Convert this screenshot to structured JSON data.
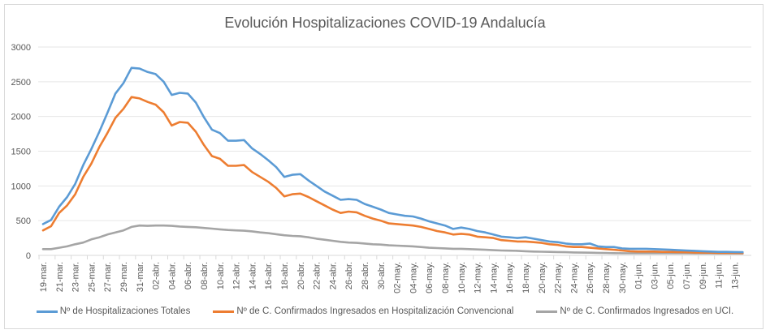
{
  "chart_data": {
    "type": "line",
    "title": "Evolución Hospitalizaciones COVID-19 Andalucía",
    "xlabel": "",
    "ylabel": "",
    "ylim": [
      0,
      3000
    ],
    "yticks": [
      "0",
      "500",
      "1000",
      "1500",
      "2000",
      "2500",
      "3000"
    ],
    "ytick_values": [
      0,
      500,
      1000,
      1500,
      2000,
      2500,
      3000
    ],
    "grid": true,
    "legend_position": "bottom",
    "x": [
      "19-mar.",
      "20-mar.",
      "21-mar.",
      "22-mar.",
      "23-mar.",
      "24-mar.",
      "25-mar.",
      "26-mar.",
      "27-mar.",
      "28-mar.",
      "29-mar.",
      "30-mar.",
      "31-mar.",
      "01-abr.",
      "02-abr.",
      "03-abr.",
      "04-abr.",
      "05-abr.",
      "06-abr.",
      "07-abr.",
      "08-abr.",
      "09-abr.",
      "10-abr.",
      "11-abr.",
      "12-abr.",
      "13-abr.",
      "14-abr.",
      "15-abr.",
      "16-abr.",
      "17-abr.",
      "18-abr.",
      "19-abr.",
      "20-abr.",
      "21-abr.",
      "22-abr.",
      "23-abr.",
      "24-abr.",
      "25-abr.",
      "26-abr.",
      "27-abr.",
      "28-abr.",
      "29-abr.",
      "30-abr.",
      "01-may.",
      "02-may.",
      "03-may.",
      "04-may.",
      "05-may.",
      "06-may.",
      "07-may.",
      "08-may.",
      "09-may.",
      "10-may.",
      "11-may.",
      "12-may.",
      "13-may.",
      "14-may.",
      "15-may.",
      "16-may.",
      "17-may.",
      "18-may.",
      "19-may.",
      "20-may.",
      "21-may.",
      "22-may.",
      "23-may.",
      "24-may.",
      "25-may.",
      "26-may.",
      "27-may.",
      "28-may.",
      "29-may.",
      "30-may.",
      "31-may.",
      "01-jun.",
      "02-jun.",
      "03-jun.",
      "04-jun.",
      "05-jun.",
      "06-jun.",
      "07-jun.",
      "08-jun.",
      "09-jun.",
      "10-jun.",
      "11-jun.",
      "12-jun.",
      "13-jun.",
      "14-jun."
    ],
    "xtick_labels": [
      "19-mar.",
      "21-mar.",
      "23-mar.",
      "25-mar.",
      "27-mar.",
      "29-mar.",
      "31-mar.",
      "02-abr.",
      "04-abr.",
      "06-abr.",
      "08-abr.",
      "10-abr.",
      "12-abr.",
      "14-abr.",
      "16-abr.",
      "18-abr.",
      "20-abr.",
      "22-abr.",
      "24-abr.",
      "26-abr.",
      "28-abr.",
      "30-abr.",
      "02-may.",
      "04-may.",
      "06-may.",
      "08-may.",
      "10-may.",
      "12-may.",
      "14-may.",
      "16-may.",
      "18-may.",
      "20-may.",
      "22-may.",
      "24-may.",
      "26-may.",
      "28-may.",
      "30-may.",
      "01-jun.",
      "03-jun.",
      "05-jun.",
      "07-jun.",
      "09-jun.",
      "11-jun.",
      "13-jun."
    ],
    "series": [
      {
        "name": "Nº de Hospitalizaciones Totales",
        "color": "#5b9bd5",
        "values": [
          450,
          510,
          700,
          840,
          1030,
          1300,
          1530,
          1780,
          2050,
          2330,
          2480,
          2700,
          2690,
          2640,
          2610,
          2500,
          2310,
          2340,
          2330,
          2200,
          1990,
          1810,
          1760,
          1650,
          1650,
          1660,
          1540,
          1460,
          1370,
          1270,
          1130,
          1160,
          1170,
          1080,
          1000,
          920,
          860,
          800,
          810,
          800,
          740,
          700,
          660,
          610,
          590,
          570,
          560,
          530,
          490,
          460,
          430,
          380,
          400,
          380,
          350,
          330,
          300,
          270,
          260,
          250,
          260,
          240,
          220,
          200,
          190,
          170,
          160,
          160,
          170,
          130,
          120,
          120,
          100,
          95,
          95,
          95,
          90,
          85,
          80,
          75,
          70,
          65,
          60,
          55,
          50,
          50,
          48,
          45
        ]
      },
      {
        "name": "Nº de C. Confirmados Ingresados en Hospitalización Convencional",
        "color": "#ed7d31",
        "values": [
          360,
          420,
          610,
          720,
          880,
          1130,
          1320,
          1560,
          1760,
          1980,
          2110,
          2280,
          2260,
          2210,
          2170,
          2060,
          1870,
          1920,
          1910,
          1780,
          1590,
          1430,
          1390,
          1290,
          1290,
          1300,
          1200,
          1130,
          1060,
          970,
          850,
          880,
          890,
          840,
          780,
          720,
          660,
          610,
          630,
          620,
          570,
          530,
          500,
          460,
          450,
          440,
          430,
          410,
          380,
          350,
          330,
          300,
          310,
          300,
          270,
          260,
          250,
          220,
          210,
          200,
          200,
          190,
          180,
          160,
          150,
          130,
          120,
          120,
          110,
          100,
          90,
          80,
          70,
          60,
          55,
          55,
          55,
          50,
          50,
          48,
          45,
          42,
          40,
          38,
          36,
          35,
          34,
          33
        ]
      },
      {
        "name": "Nº de C. Confirmados Ingresados en UCI.",
        "color": "#a5a5a5",
        "values": [
          90,
          90,
          110,
          130,
          160,
          185,
          230,
          260,
          300,
          330,
          360,
          410,
          430,
          425,
          430,
          430,
          425,
          415,
          410,
          405,
          395,
          385,
          375,
          365,
          360,
          355,
          345,
          330,
          320,
          305,
          290,
          280,
          275,
          260,
          240,
          225,
          210,
          195,
          185,
          180,
          170,
          160,
          155,
          145,
          140,
          135,
          130,
          120,
          110,
          105,
          100,
          95,
          95,
          90,
          85,
          80,
          75,
          70,
          68,
          65,
          60,
          55,
          52,
          50,
          48,
          45,
          42,
          40,
          38,
          36,
          34,
          32,
          30,
          30,
          30,
          30,
          30,
          30,
          30,
          29,
          29,
          28,
          28,
          28,
          27,
          27,
          27,
          27
        ]
      }
    ]
  }
}
